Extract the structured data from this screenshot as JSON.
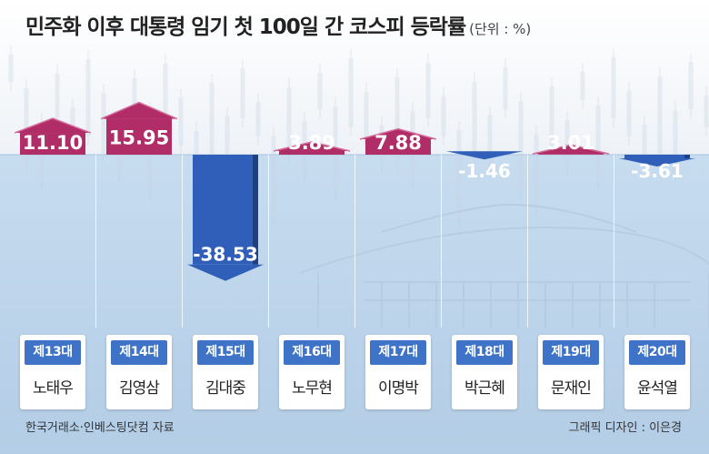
{
  "title": "민주화 이후 대통령 임기 첫 100일 간 코스피 등락률",
  "unit": "(단위 : %)",
  "chart_data": {
    "type": "bar",
    "categories": [
      "노태우",
      "김영삼",
      "김대중",
      "노무현",
      "이명박",
      "박근혜",
      "문재인",
      "윤석열"
    ],
    "terms": [
      "제13대",
      "제14대",
      "제15대",
      "제16대",
      "제17대",
      "제18대",
      "제19대",
      "제20대"
    ],
    "values": [
      11.1,
      15.95,
      -38.53,
      3.89,
      7.88,
      -1.46,
      3.01,
      -3.61
    ],
    "value_labels": [
      "11.10",
      "15.95",
      "-38.53",
      "3.89",
      "7.88",
      "-1.46",
      "3.01",
      "-3.61"
    ],
    "colors": {
      "positive": "#b02d67",
      "negative": "#2f5fb8",
      "water": "#c7dcef",
      "sky": "#eef2f7",
      "term_badge": "#3e73c8"
    }
  },
  "footer": {
    "source": "한국거래소·인베스팅닷컴 자료",
    "credit": "그래픽 디자인 : 이은경"
  }
}
